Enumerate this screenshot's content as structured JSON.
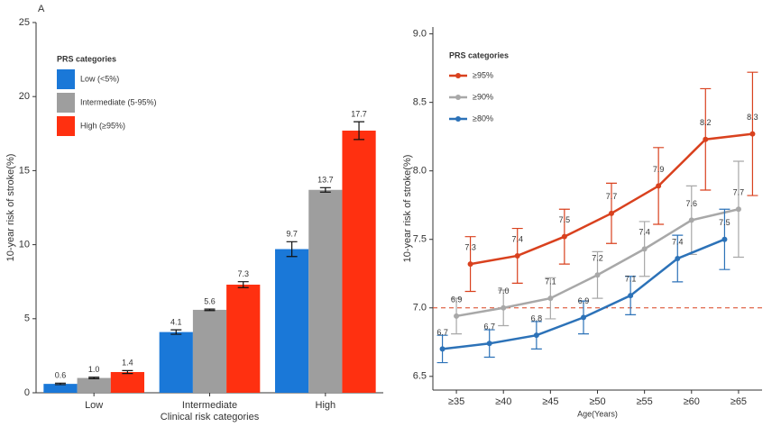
{
  "chart_data": [
    {
      "type": "bar",
      "panel_label": "A",
      "y_label": "10-year risk of stroke(%)",
      "x_label": "Clinical risk categories",
      "legend_title": "PRS categories",
      "legend": "top-left",
      "categories": [
        "Low",
        "Intermediate",
        "High"
      ],
      "series": [
        {
          "name": "Low (<5%)",
          "color": "#1a78d8",
          "values": [
            0.6,
            4.1,
            9.7
          ],
          "errors": [
            0.05,
            0.15,
            0.5
          ]
        },
        {
          "name": "Intermediate (5-95%)",
          "color": "#9e9e9e",
          "values": [
            1,
            5.6,
            13.7
          ],
          "value_labels": [
            "1.0",
            "5.6",
            "13.7"
          ],
          "errors": [
            0.05,
            0.05,
            0.15
          ]
        },
        {
          "name": "High (≥95%)",
          "color": "#ff3010",
          "values": [
            1.4,
            7.3,
            17.7
          ],
          "errors": [
            0.1,
            0.2,
            0.6
          ]
        }
      ],
      "ylim": [
        0,
        25
      ],
      "yticks": [
        0,
        5,
        10,
        15,
        20,
        25
      ]
    },
    {
      "type": "line",
      "y_label": "10-year risk of stroke(%)",
      "x_label": "Age(Years)",
      "legend_title": "PRS categories",
      "legend": "top-left",
      "hline": 7,
      "categories": [
        "≥35",
        "≥40",
        "≥45",
        "≥50",
        "≥55",
        "≥60",
        "≥65"
      ],
      "series": [
        {
          "name": "≥95%",
          "color": "#d9411e",
          "values": [
            7.32,
            7.38,
            7.52,
            7.69,
            7.89,
            8.23,
            8.27
          ],
          "value_labels": [
            "7.3",
            "7.4",
            "7.5",
            "7.7",
            "7.9",
            "8.2",
            "8.3"
          ],
          "errors": [
            0.2,
            0.2,
            0.2,
            0.22,
            0.28,
            0.37,
            0.45
          ]
        },
        {
          "name": "≥90%",
          "color": "#a8a8a8",
          "values": [
            6.94,
            7,
            7.07,
            7.24,
            7.43,
            7.64,
            7.72
          ],
          "value_labels": [
            "6.9",
            "7.0",
            "7.1",
            "7.2",
            "7.4",
            "7.6",
            "7.7"
          ],
          "errors": [
            0.13,
            0.13,
            0.15,
            0.17,
            0.2,
            0.25,
            0.35
          ]
        },
        {
          "name": "≥80%",
          "color": "#2c72b8",
          "values": [
            6.7,
            6.74,
            6.8,
            6.93,
            7.09,
            7.36,
            7.5
          ],
          "value_labels": [
            "6.7",
            "6.7",
            "6.8",
            "6.9",
            "7.1",
            "7.4",
            "7.5"
          ],
          "errors": [
            0.1,
            0.1,
            0.1,
            0.12,
            0.14,
            0.17,
            0.22
          ]
        }
      ],
      "ylim": [
        6.4,
        9.05
      ],
      "yticks": [
        6.5,
        {
          "value": 7,
          "label": "7.0"
        },
        7.5,
        {
          "value": 8,
          "label": "8.0"
        },
        8.5,
        {
          "value": 9,
          "label": "9.0"
        }
      ]
    }
  ]
}
